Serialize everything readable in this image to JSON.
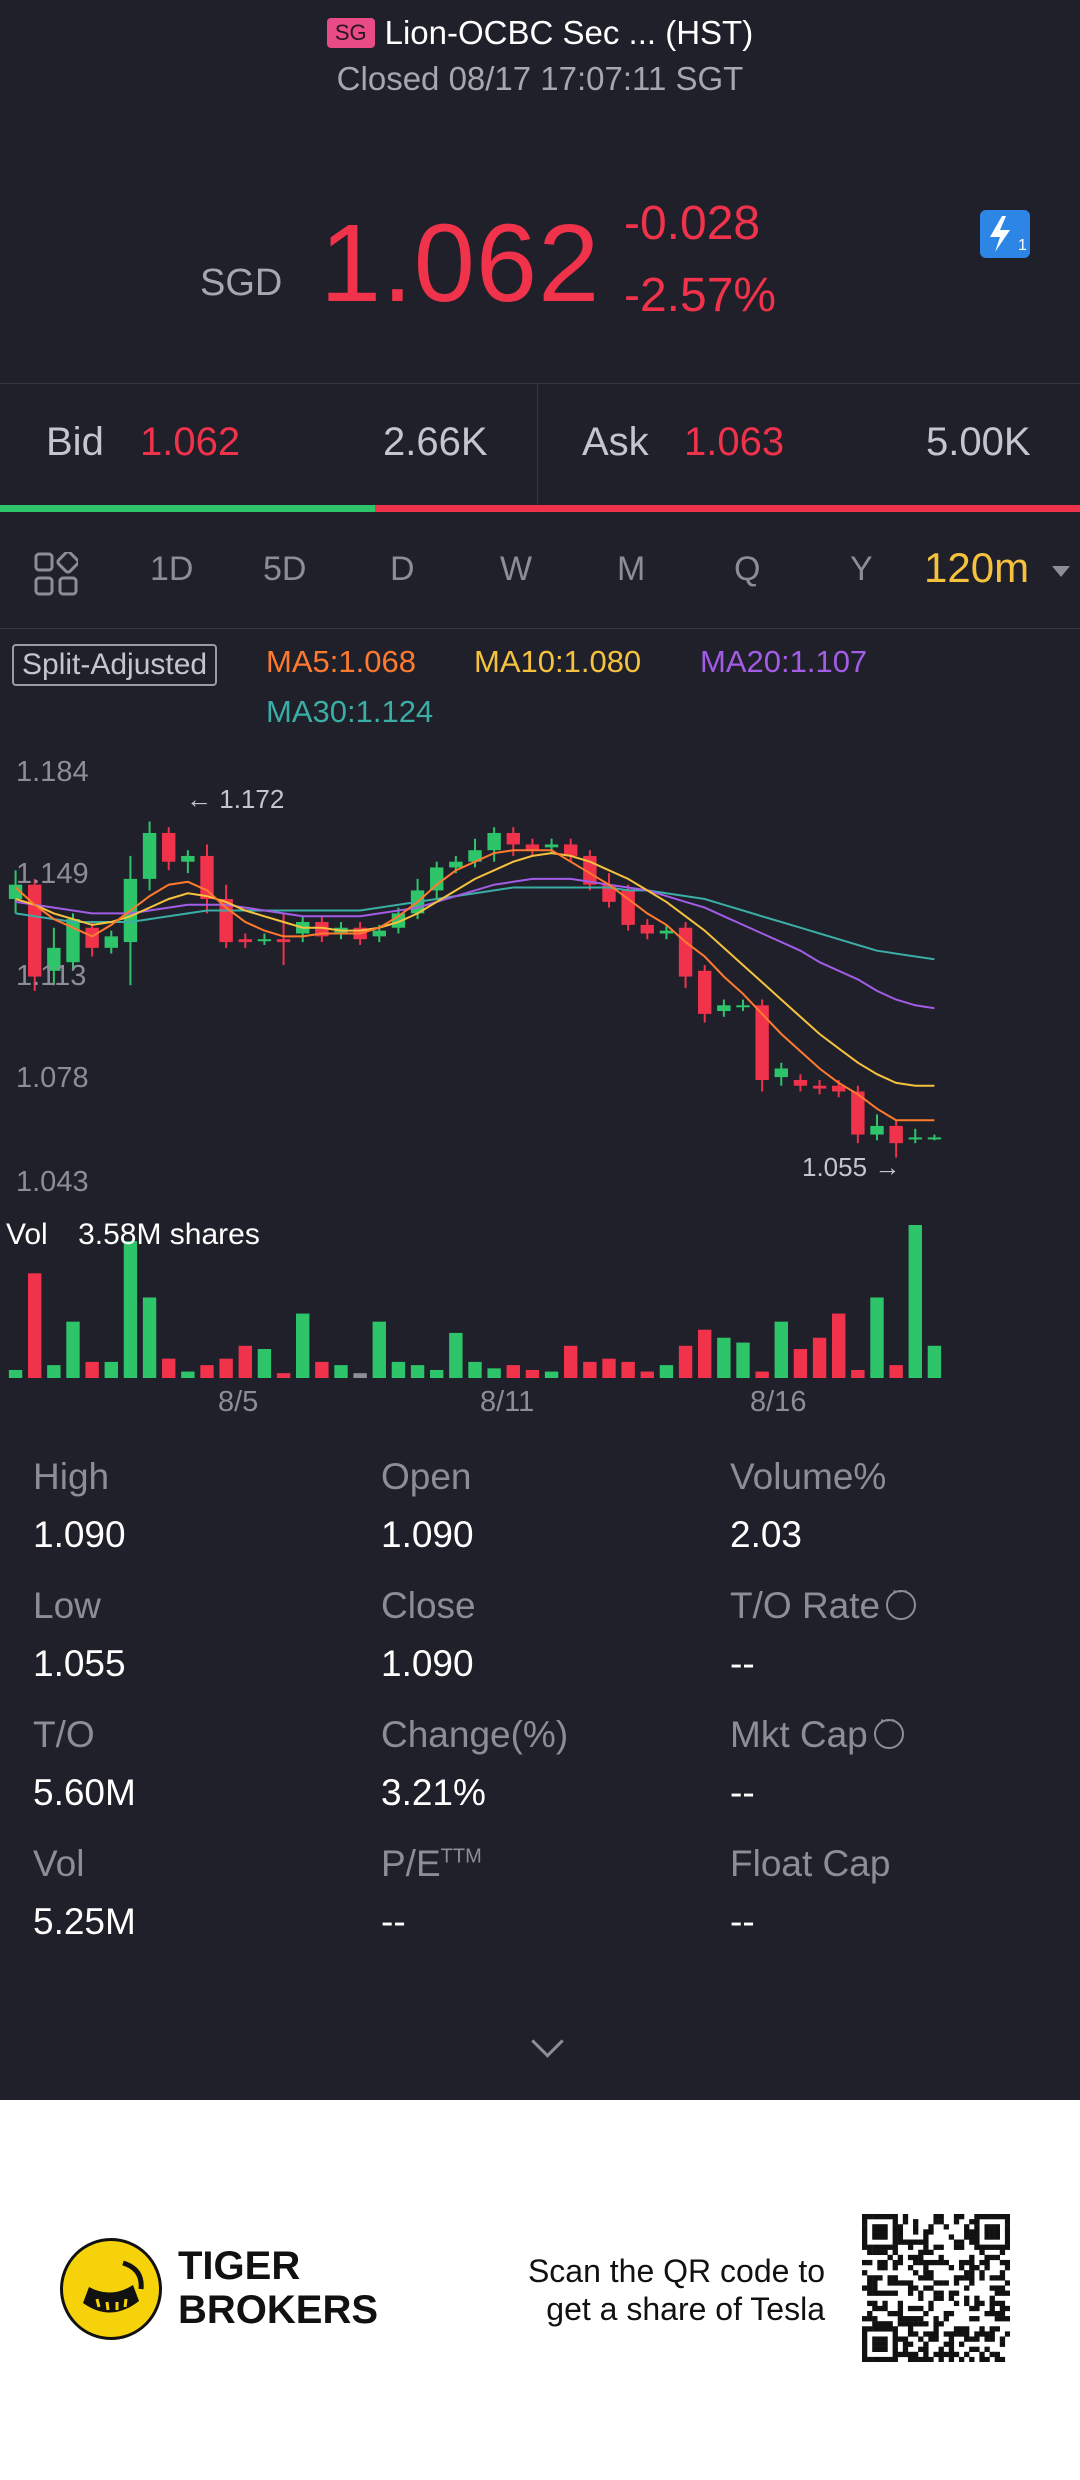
{
  "header": {
    "market_badge": "SG",
    "title": "Lion-OCBC Sec ... (HST)",
    "status": "Closed 08/17 17:07:11 SGT"
  },
  "quote": {
    "currency": "SGD",
    "price": "1.062",
    "change": "-0.028",
    "change_pct": "-2.57%",
    "colors": {
      "down": "#f0324b",
      "up": "#2ec46a"
    },
    "icon": "lightning-badge-icon"
  },
  "bid_ask": {
    "bid_label": "Bid",
    "bid_price": "1.062",
    "bid_size": "2.66K",
    "ask_label": "Ask",
    "ask_price": "1.063",
    "ask_size": "5.00K",
    "bid_share": 0.347
  },
  "periods": {
    "icon": "grid-layout-icon",
    "items": [
      "1D",
      "5D",
      "D",
      "W",
      "M",
      "Q",
      "Y"
    ],
    "active": "120m",
    "active_color": "#f6c23e"
  },
  "legend": {
    "split_label": "Split-Adjusted",
    "ma5": "MA5:1.068",
    "ma10": "MA10:1.080",
    "ma20": "MA20:1.107",
    "ma30": "MA30:1.124",
    "colors": {
      "ma5": "#ff7a2e",
      "ma10": "#f6c23e",
      "ma20": "#a25ce6",
      "ma30": "#3aaea5"
    }
  },
  "chart_data": {
    "type": "candlestick",
    "y_ticks": [
      "1.184",
      "1.149",
      "1.113",
      "1.078",
      "1.043"
    ],
    "ylim": [
      1.043,
      1.184
    ],
    "x_ticks": [
      "8/5",
      "8/11",
      "8/16"
    ],
    "max_marker": "1.172",
    "min_marker": "1.055",
    "volume_label": "Vol",
    "volume_value": "3.58M shares",
    "candles": [
      {
        "o": 1.145,
        "c": 1.15,
        "h": 1.155,
        "l": 1.14
      },
      {
        "o": 1.15,
        "c": 1.118,
        "h": 1.152,
        "l": 1.113
      },
      {
        "o": 1.12,
        "c": 1.128,
        "h": 1.135,
        "l": 1.115
      },
      {
        "o": 1.123,
        "c": 1.138,
        "h": 1.14,
        "l": 1.12
      },
      {
        "o": 1.135,
        "c": 1.128,
        "h": 1.137,
        "l": 1.125
      },
      {
        "o": 1.128,
        "c": 1.132,
        "h": 1.134,
        "l": 1.126
      },
      {
        "o": 1.13,
        "c": 1.152,
        "h": 1.16,
        "l": 1.115
      },
      {
        "o": 1.152,
        "c": 1.168,
        "h": 1.172,
        "l": 1.148
      },
      {
        "o": 1.168,
        "c": 1.158,
        "h": 1.17,
        "l": 1.155
      },
      {
        "o": 1.158,
        "c": 1.16,
        "h": 1.162,
        "l": 1.154
      },
      {
        "o": 1.16,
        "c": 1.145,
        "h": 1.164,
        "l": 1.14
      },
      {
        "o": 1.145,
        "c": 1.13,
        "h": 1.15,
        "l": 1.128
      },
      {
        "o": 1.131,
        "c": 1.13,
        "h": 1.133,
        "l": 1.128
      },
      {
        "o": 1.131,
        "c": 1.131,
        "h": 1.133,
        "l": 1.129
      },
      {
        "o": 1.131,
        "c": 1.13,
        "h": 1.14,
        "l": 1.122
      },
      {
        "o": 1.133,
        "c": 1.137,
        "h": 1.139,
        "l": 1.13
      },
      {
        "o": 1.137,
        "c": 1.132,
        "h": 1.139,
        "l": 1.13
      },
      {
        "o": 1.133,
        "c": 1.135,
        "h": 1.137,
        "l": 1.131
      },
      {
        "o": 1.135,
        "c": 1.131,
        "h": 1.137,
        "l": 1.129
      },
      {
        "o": 1.132,
        "c": 1.134,
        "h": 1.136,
        "l": 1.13
      },
      {
        "o": 1.135,
        "c": 1.14,
        "h": 1.142,
        "l": 1.133
      },
      {
        "o": 1.14,
        "c": 1.148,
        "h": 1.152,
        "l": 1.138
      },
      {
        "o": 1.148,
        "c": 1.156,
        "h": 1.158,
        "l": 1.145
      },
      {
        "o": 1.156,
        "c": 1.158,
        "h": 1.16,
        "l": 1.154
      },
      {
        "o": 1.158,
        "c": 1.162,
        "h": 1.166,
        "l": 1.156
      },
      {
        "o": 1.162,
        "c": 1.168,
        "h": 1.17,
        "l": 1.158
      },
      {
        "o": 1.168,
        "c": 1.164,
        "h": 1.17,
        "l": 1.16
      },
      {
        "o": 1.164,
        "c": 1.162,
        "h": 1.166,
        "l": 1.16
      },
      {
        "o": 1.163,
        "c": 1.164,
        "h": 1.166,
        "l": 1.161
      },
      {
        "o": 1.164,
        "c": 1.16,
        "h": 1.166,
        "l": 1.158
      },
      {
        "o": 1.16,
        "c": 1.15,
        "h": 1.162,
        "l": 1.148
      },
      {
        "o": 1.15,
        "c": 1.144,
        "h": 1.154,
        "l": 1.142
      },
      {
        "o": 1.148,
        "c": 1.136,
        "h": 1.15,
        "l": 1.134
      },
      {
        "o": 1.136,
        "c": 1.133,
        "h": 1.138,
        "l": 1.131
      },
      {
        "o": 1.133,
        "c": 1.134,
        "h": 1.136,
        "l": 1.131
      },
      {
        "o": 1.135,
        "c": 1.118,
        "h": 1.137,
        "l": 1.114
      },
      {
        "o": 1.12,
        "c": 1.105,
        "h": 1.122,
        "l": 1.102
      },
      {
        "o": 1.106,
        "c": 1.108,
        "h": 1.11,
        "l": 1.104
      },
      {
        "o": 1.108,
        "c": 1.108,
        "h": 1.11,
        "l": 1.106
      },
      {
        "o": 1.108,
        "c": 1.082,
        "h": 1.11,
        "l": 1.078
      },
      {
        "o": 1.083,
        "c": 1.086,
        "h": 1.088,
        "l": 1.08
      },
      {
        "o": 1.082,
        "c": 1.08,
        "h": 1.084,
        "l": 1.078
      },
      {
        "o": 1.08,
        "c": 1.079,
        "h": 1.082,
        "l": 1.077
      },
      {
        "o": 1.08,
        "c": 1.078,
        "h": 1.082,
        "l": 1.076
      },
      {
        "o": 1.078,
        "c": 1.063,
        "h": 1.08,
        "l": 1.06
      },
      {
        "o": 1.063,
        "c": 1.066,
        "h": 1.07,
        "l": 1.061
      },
      {
        "o": 1.066,
        "c": 1.06,
        "h": 1.068,
        "l": 1.055
      },
      {
        "o": 1.062,
        "c": 1.062,
        "h": 1.065,
        "l": 1.06
      },
      {
        "o": 1.062,
        "c": 1.062,
        "h": 1.063,
        "l": 1.061
      }
    ],
    "volumes": [
      5,
      65,
      8,
      35,
      10,
      10,
      85,
      50,
      12,
      4,
      8,
      12,
      20,
      18,
      3,
      40,
      10,
      8,
      3,
      35,
      10,
      8,
      5,
      28,
      10,
      6,
      8,
      5,
      4,
      20,
      10,
      12,
      10,
      4,
      8,
      20,
      30,
      25,
      22,
      4,
      35,
      18,
      25,
      40,
      5,
      50,
      8,
      95,
      20
    ],
    "ma5": [
      1.149,
      1.143,
      1.138,
      1.135,
      1.132,
      1.136,
      1.141,
      1.146,
      1.15,
      1.151,
      1.148,
      1.142,
      1.137,
      1.134,
      1.132,
      1.132,
      1.133,
      1.133,
      1.133,
      1.135,
      1.139,
      1.144,
      1.15,
      1.155,
      1.158,
      1.161,
      1.162,
      1.162,
      1.162,
      1.158,
      1.154,
      1.15,
      1.145,
      1.14,
      1.136,
      1.13,
      1.125,
      1.118,
      1.112,
      1.105,
      1.098,
      1.092,
      1.086,
      1.081,
      1.077,
      1.072,
      1.068,
      1.068,
      1.068
    ],
    "ma10": [
      1.145,
      1.143,
      1.14,
      1.138,
      1.136,
      1.137,
      1.139,
      1.142,
      1.145,
      1.147,
      1.146,
      1.144,
      1.141,
      1.139,
      1.137,
      1.135,
      1.135,
      1.134,
      1.134,
      1.135,
      1.137,
      1.14,
      1.144,
      1.148,
      1.152,
      1.155,
      1.158,
      1.16,
      1.161,
      1.16,
      1.158,
      1.155,
      1.152,
      1.148,
      1.144,
      1.139,
      1.134,
      1.128,
      1.122,
      1.116,
      1.11,
      1.104,
      1.098,
      1.093,
      1.088,
      1.084,
      1.081,
      1.08,
      1.08
    ],
    "ma20": [
      1.144,
      1.143,
      1.142,
      1.141,
      1.14,
      1.14,
      1.14,
      1.141,
      1.142,
      1.143,
      1.143,
      1.143,
      1.142,
      1.141,
      1.14,
      1.139,
      1.139,
      1.139,
      1.139,
      1.14,
      1.141,
      1.142,
      1.144,
      1.146,
      1.148,
      1.15,
      1.151,
      1.152,
      1.152,
      1.152,
      1.151,
      1.15,
      1.149,
      1.148,
      1.146,
      1.144,
      1.142,
      1.139,
      1.136,
      1.133,
      1.13,
      1.127,
      1.123,
      1.12,
      1.117,
      1.113,
      1.11,
      1.108,
      1.107
    ],
    "ma30": [
      1.14,
      1.139,
      1.138,
      1.137,
      1.137,
      1.137,
      1.137,
      1.138,
      1.139,
      1.14,
      1.141,
      1.141,
      1.141,
      1.141,
      1.141,
      1.141,
      1.141,
      1.141,
      1.141,
      1.142,
      1.143,
      1.144,
      1.145,
      1.146,
      1.147,
      1.148,
      1.149,
      1.149,
      1.149,
      1.149,
      1.149,
      1.149,
      1.148,
      1.148,
      1.147,
      1.146,
      1.145,
      1.143,
      1.141,
      1.139,
      1.137,
      1.135,
      1.133,
      1.131,
      1.129,
      1.127,
      1.126,
      1.125,
      1.124
    ]
  },
  "stats": {
    "high_label": "High",
    "high": "1.090",
    "open_label": "Open",
    "open": "1.090",
    "volpct_label": "Volume%",
    "volpct": "2.03",
    "low_label": "Low",
    "low": "1.055",
    "close_label": "Close",
    "close": "1.090",
    "toRate_label": "T/O Rate",
    "toRate": "--",
    "to_label": "T/O",
    "to": "5.60M",
    "chgpct_label": "Change(%)",
    "chgpct": "3.21%",
    "mktcap_label": "Mkt Cap",
    "mktcap": "--",
    "vol_label": "Vol",
    "vol": "5.25M",
    "pe_label": "P/E",
    "pe_sup": "TTM",
    "pe": "--",
    "floatcap_label": "Float Cap",
    "floatcap": "--"
  },
  "footer": {
    "brand_line1": "TIGER",
    "brand_line2": "BROKERS",
    "scan_line1": "Scan the QR code to",
    "scan_line2": "get a share of Tesla"
  }
}
